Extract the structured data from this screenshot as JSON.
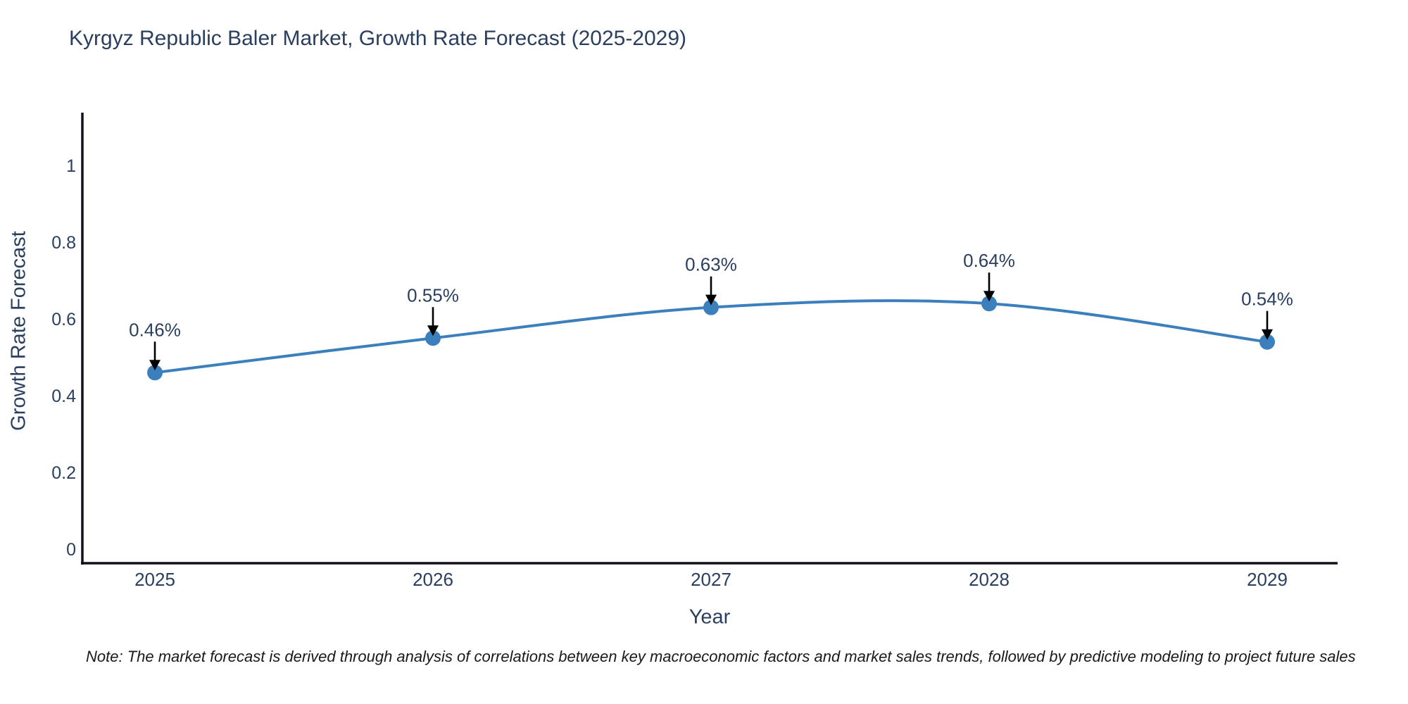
{
  "page": {
    "background": "#ffffff"
  },
  "title": {
    "text": "Kyrgyz Republic Baler Market, Growth Rate Forecast (2025-2029)"
  },
  "note": {
    "text": "Note: The market forecast is derived through analysis of correlations between key macroeconomic factors and market sales trends, followed by predictive modeling to project future sales"
  },
  "chart_data": {
    "type": "line",
    "title": "Kyrgyz Republic Baler Market, Growth Rate Forecast (2025-2029)",
    "x": [
      "2025",
      "2026",
      "2027",
      "2028",
      "2029"
    ],
    "series": [
      {
        "name": "Growth Rate Forecast",
        "values": [
          0.46,
          0.55,
          0.63,
          0.64,
          0.54
        ]
      }
    ],
    "point_labels": [
      "0.46%",
      "0.55%",
      "0.63%",
      "0.64%",
      "0.54%"
    ],
    "xlabel": "Year",
    "ylabel": "Growth Rate Forecast",
    "yticks": [
      0,
      0.2,
      0.4,
      0.6,
      0.8,
      1
    ],
    "ytick_labels": [
      "0",
      "0.2",
      "0.4",
      "0.6",
      "0.8",
      "1"
    ],
    "ylim": [
      -0.04,
      1.14
    ],
    "grid": false,
    "legend": "none",
    "line_shape": "spline",
    "annotation_arrows": true,
    "colors": {
      "line": "#3b80bd",
      "marker": "#3b80bd",
      "axis_line": "#12121c",
      "tick_label": "#2a3f5f",
      "annotation_text": "#2a3f5f",
      "arrow": "#000000"
    }
  }
}
